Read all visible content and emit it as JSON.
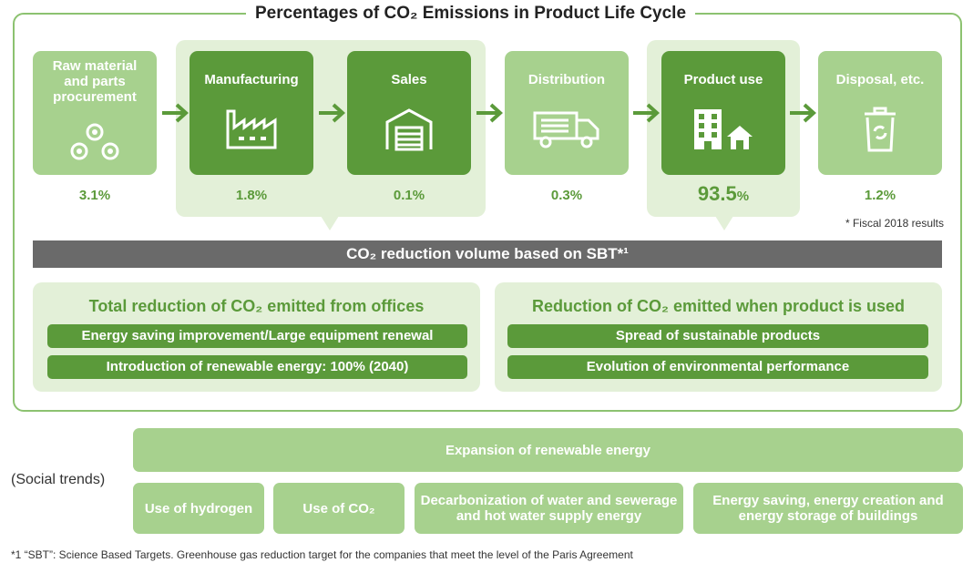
{
  "title": "Percentages of CO₂ Emissions in Product Life Cycle",
  "stages": [
    {
      "label": "Raw material and parts procurement",
      "icon": "raw-material-icon",
      "value": "3.1%"
    },
    {
      "label": "Manufacturing",
      "icon": "factory-icon",
      "value": "1.8%"
    },
    {
      "label": "Sales",
      "icon": "warehouse-icon",
      "value": "0.1%"
    },
    {
      "label": "Distribution",
      "icon": "truck-icon",
      "value": "0.3%"
    },
    {
      "label": "Product use",
      "icon": "building-house-icon",
      "value_number": "93.5",
      "value_unit": "%"
    },
    {
      "label": "Disposal, etc.",
      "icon": "recycle-bin-icon",
      "value": "1.2%"
    }
  ],
  "fiscal_note": "* Fiscal 2018 results",
  "sbt_bar": "CO₂ reduction volume based on SBT*¹",
  "left_panel": {
    "title": "Total reduction of CO₂ emitted from offices",
    "items": [
      "Energy saving improvement/Large equipment renewal",
      "Introduction of renewable energy: 100% (2040)"
    ]
  },
  "right_panel": {
    "title": "Reduction of CO₂ emitted when product is used",
    "items": [
      "Spread of sustainable products",
      "Evolution of environmental performance"
    ]
  },
  "social_trends": {
    "label": "(Social trends)",
    "top": "Expansion of renewable energy",
    "items": [
      "Use of hydrogen",
      "Use of CO₂",
      "Decarbonization of water and sewerage and hot water supply energy",
      "Energy saving, energy creation and energy storage of buildings"
    ]
  },
  "footnote": "*1 “SBT”: Science Based Targets. Greenhouse gas reduction target for the companies that meet the level of the Paris Agreement",
  "colors": {
    "dark_green": "#5b9a3a",
    "light_green": "#a7d18e",
    "pale_green": "#e3f0d8",
    "gray_bar": "#6a6a6a"
  }
}
